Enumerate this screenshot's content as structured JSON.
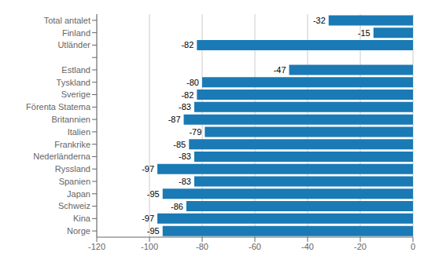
{
  "chart_data": {
    "type": "bar",
    "orientation": "horizontal",
    "categories": [
      "Norge",
      "Kina",
      "Schweiz",
      "Japan",
      "Spanien",
      "Ryssland",
      "Nederländerna",
      "Frankrike",
      "Italien",
      "Britannien",
      "Förenta Statema",
      "Sverige",
      "Tyskland",
      "Estland",
      null,
      "Utländer",
      "Finland",
      "Total antalet"
    ],
    "values": [
      -95,
      -97,
      -86,
      -95,
      -83,
      -97,
      -83,
      -85,
      -79,
      -87,
      -83,
      -82,
      -80,
      -47,
      null,
      -82,
      -15,
      -32
    ],
    "color": "#1a7ab5",
    "xlim": [
      -120,
      0
    ],
    "xticks": [
      -120,
      -100,
      -80,
      -60,
      -40,
      -20,
      0
    ],
    "grid": true,
    "data_labels": true
  }
}
